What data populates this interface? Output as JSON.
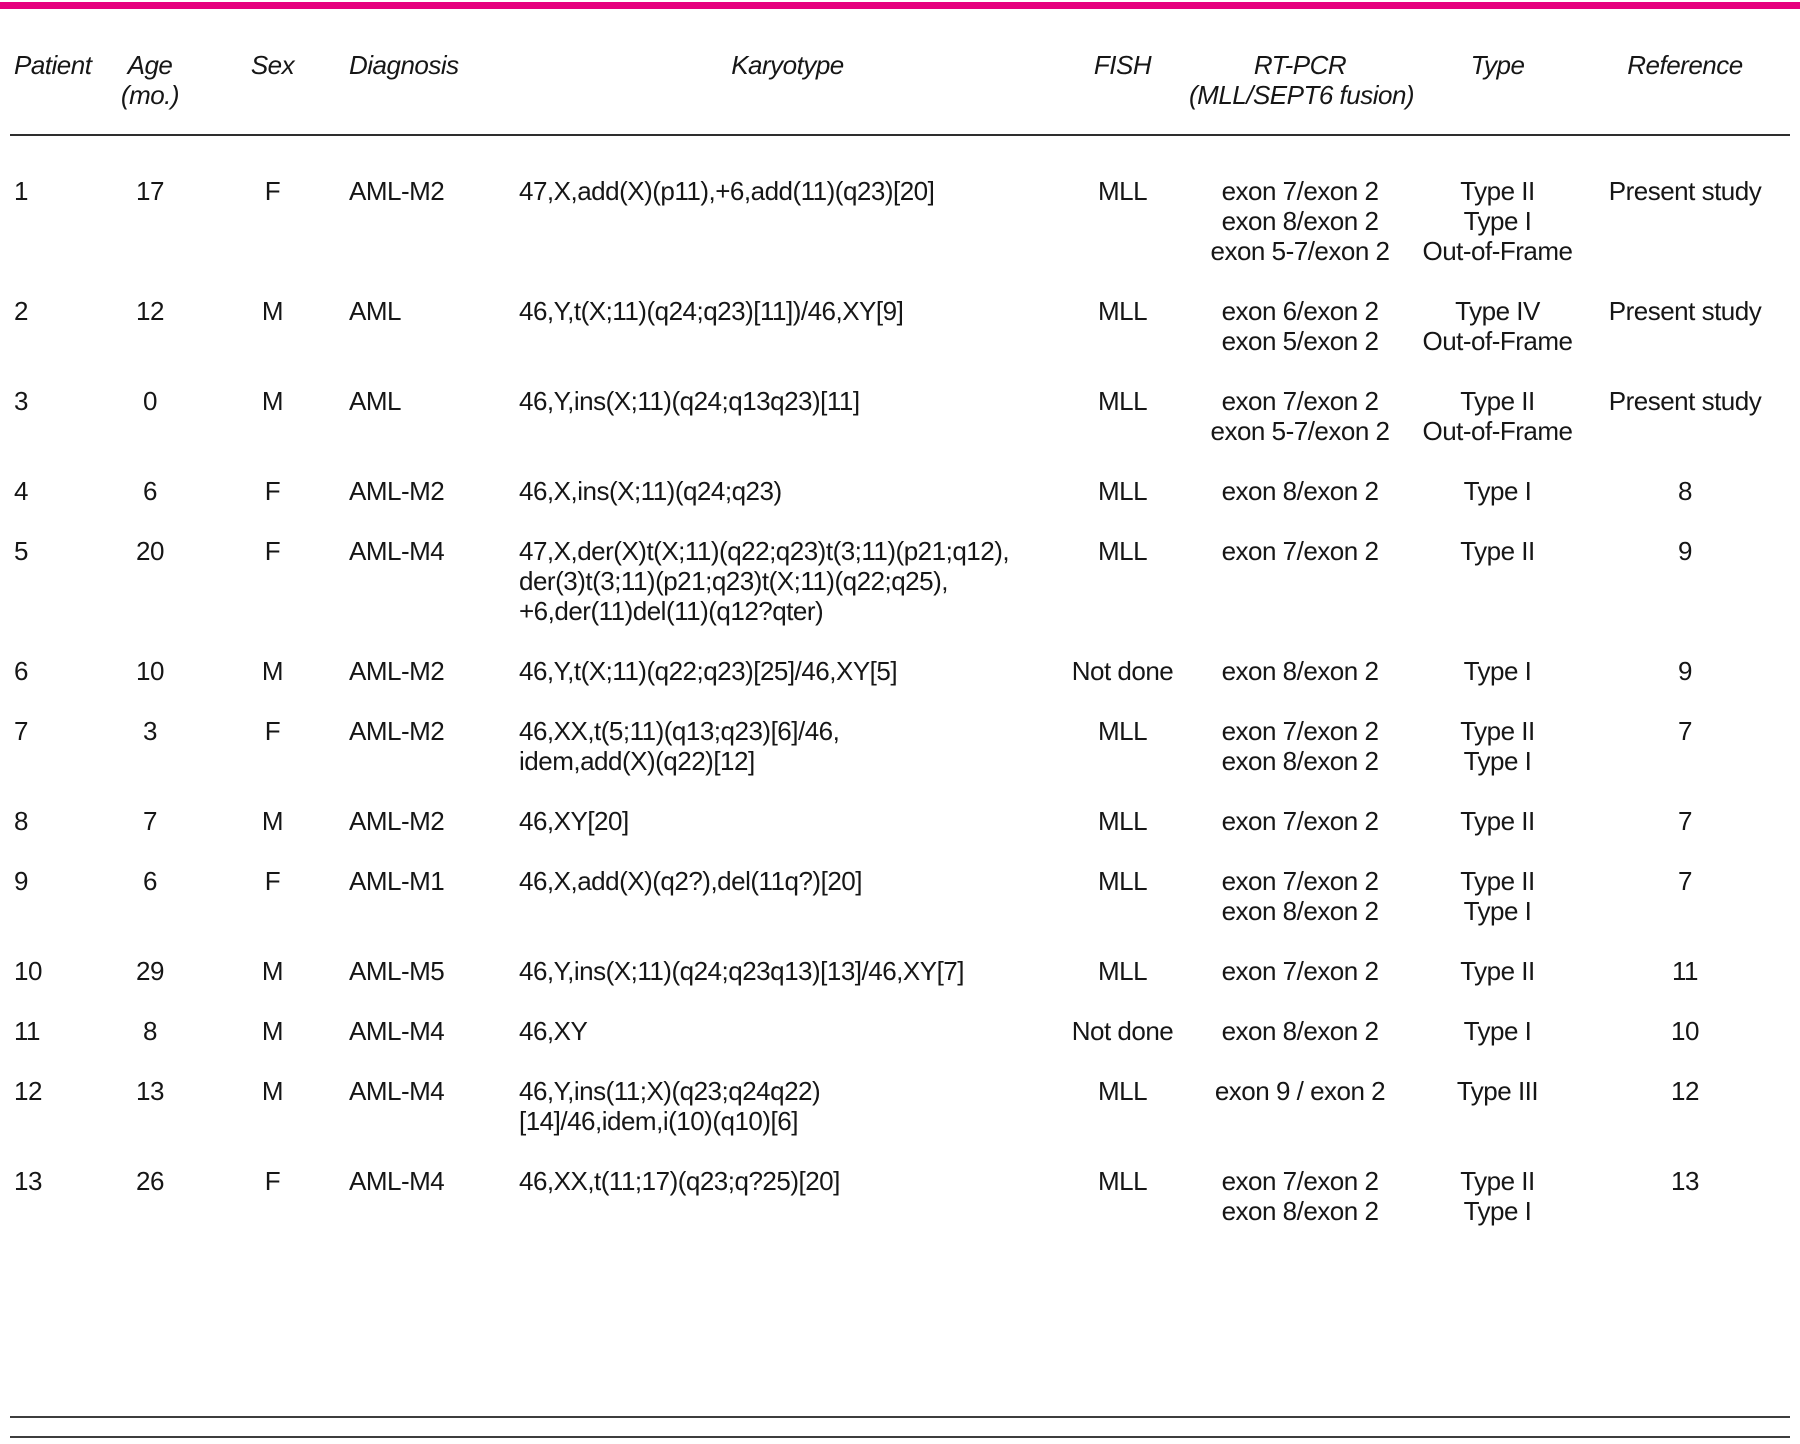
{
  "accent_color": "#e6007e",
  "table": {
    "columns": [
      {
        "key": "patient",
        "lines": [
          "Patient"
        ]
      },
      {
        "key": "age",
        "lines": [
          "Age",
          "(mo.)"
        ]
      },
      {
        "key": "sex",
        "lines": [
          "Sex"
        ]
      },
      {
        "key": "diagnosis",
        "lines": [
          "Diagnosis"
        ]
      },
      {
        "key": "karyotype",
        "lines": [
          "Karyotype"
        ]
      },
      {
        "key": "fish",
        "lines": [
          "FISH"
        ]
      },
      {
        "key": "rtpcr",
        "lines": [
          "RT-PCR",
          "(MLL/SEPT6 fusion)"
        ]
      },
      {
        "key": "type",
        "lines": [
          "Type"
        ]
      },
      {
        "key": "reference",
        "lines": [
          "Reference"
        ]
      }
    ],
    "rows": [
      {
        "patient": "1",
        "age": "17",
        "sex": "F",
        "diagnosis": "AML-M2",
        "karyotype": [
          "47,X,add(X)(p11),+6,add(11)(q23)[20]"
        ],
        "fish": "MLL",
        "rtpcr": [
          "exon 7/exon 2",
          "exon 8/exon 2",
          "exon 5-7/exon 2"
        ],
        "type": [
          "Type II",
          "Type I",
          "Out-of-Frame"
        ],
        "reference": "Present study"
      },
      {
        "patient": "2",
        "age": "12",
        "sex": "M",
        "diagnosis": "AML",
        "karyotype": [
          "46,Y,t(X;11)(q24;q23)[11])/46,XY[9]"
        ],
        "fish": "MLL",
        "rtpcr": [
          "exon 6/exon 2",
          "exon 5/exon 2"
        ],
        "type": [
          "Type IV",
          "Out-of-Frame"
        ],
        "reference": "Present study"
      },
      {
        "patient": "3",
        "age": "0",
        "sex": "M",
        "diagnosis": "AML",
        "karyotype": [
          "46,Y,ins(X;11)(q24;q13q23)[11]"
        ],
        "fish": "MLL",
        "rtpcr": [
          "exon 7/exon 2",
          "exon 5-7/exon 2"
        ],
        "type": [
          "Type II",
          "Out-of-Frame"
        ],
        "reference": "Present study"
      },
      {
        "patient": "4",
        "age": "6",
        "sex": "F",
        "diagnosis": "AML-M2",
        "karyotype": [
          "46,X,ins(X;11)(q24;q23)"
        ],
        "fish": "MLL",
        "rtpcr": [
          "exon 8/exon 2"
        ],
        "type": [
          "Type I"
        ],
        "reference": "8"
      },
      {
        "patient": "5",
        "age": "20",
        "sex": "F",
        "diagnosis": "AML-M4",
        "karyotype": [
          "47,X,der(X)t(X;11)(q22;q23)t(3;11)(p21;q12),",
          "der(3)t(3;11)(p21;q23)t(X;11)(q22;q25),",
          "+6,der(11)del(11)(q12?qter)"
        ],
        "fish": "MLL",
        "rtpcr": [
          "exon 7/exon 2"
        ],
        "type": [
          "Type II"
        ],
        "reference": "9"
      },
      {
        "patient": "6",
        "age": "10",
        "sex": "M",
        "diagnosis": "AML-M2",
        "karyotype": [
          "46,Y,t(X;11)(q22;q23)[25]/46,XY[5]"
        ],
        "fish": "Not done",
        "rtpcr": [
          "exon 8/exon 2"
        ],
        "type": [
          "Type I"
        ],
        "reference": "9"
      },
      {
        "patient": "7",
        "age": "3",
        "sex": "F",
        "diagnosis": "AML-M2",
        "karyotype": [
          "46,XX,t(5;11)(q13;q23)[6]/46,",
          "idem,add(X)(q22)[12]"
        ],
        "fish": "MLL",
        "rtpcr": [
          "exon 7/exon 2",
          "exon 8/exon 2"
        ],
        "type": [
          "Type II",
          "Type I"
        ],
        "reference": "7"
      },
      {
        "patient": "8",
        "age": "7",
        "sex": "M",
        "diagnosis": "AML-M2",
        "karyotype": [
          "46,XY[20]"
        ],
        "fish": "MLL",
        "rtpcr": [
          "exon 7/exon 2"
        ],
        "type": [
          "Type II"
        ],
        "reference": "7"
      },
      {
        "patient": "9",
        "age": "6",
        "sex": "F",
        "diagnosis": "AML-M1",
        "karyotype": [
          "46,X,add(X)(q2?),del(11q?)[20]"
        ],
        "fish": "MLL",
        "rtpcr": [
          "exon 7/exon 2",
          "exon 8/exon 2"
        ],
        "type": [
          "Type II",
          "Type I"
        ],
        "reference": "7"
      },
      {
        "patient": "10",
        "age": "29",
        "sex": "M",
        "diagnosis": "AML-M5",
        "karyotype": [
          "46,Y,ins(X;11)(q24;q23q13)[13]/46,XY[7]"
        ],
        "fish": "MLL",
        "rtpcr": [
          "exon 7/exon 2"
        ],
        "type": [
          "Type II"
        ],
        "reference": "11"
      },
      {
        "patient": "11",
        "age": "8",
        "sex": "M",
        "diagnosis": "AML-M4",
        "karyotype": [
          "46,XY"
        ],
        "fish": "Not done",
        "rtpcr": [
          "exon 8/exon 2"
        ],
        "type": [
          "Type I"
        ],
        "reference": "10"
      },
      {
        "patient": "12",
        "age": "13",
        "sex": "M",
        "diagnosis": "AML-M4",
        "karyotype": [
          "46,Y,ins(11;X)(q23;q24q22)",
          "[14]/46,idem,i(10)(q10)[6]"
        ],
        "fish": "MLL",
        "rtpcr": [
          "exon 9 / exon 2"
        ],
        "type": [
          "Type III"
        ],
        "reference": "12"
      },
      {
        "patient": "13",
        "age": "26",
        "sex": "F",
        "diagnosis": "AML-M4",
        "karyotype": [
          "46,XX,t(11;17)(q23;q?25)[20]"
        ],
        "fish": "MLL",
        "rtpcr": [
          "exon 7/exon 2",
          "exon 8/exon 2"
        ],
        "type": [
          "Type II",
          "Type I"
        ],
        "reference": "13"
      }
    ]
  }
}
